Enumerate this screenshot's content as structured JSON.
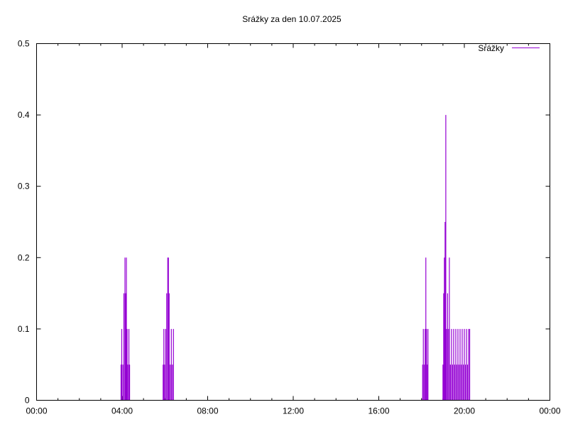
{
  "chart_data": {
    "type": "line",
    "title": "Srážky za den 10.07.2025",
    "xlabel": "",
    "ylabel": "",
    "x_ticks": [
      "00:00",
      "04:00",
      "08:00",
      "12:00",
      "16:00",
      "20:00",
      "00:00"
    ],
    "y_ticks": [
      "0",
      "0.1",
      "0.2",
      "0.3",
      "0.4",
      "0.5"
    ],
    "xlim_hours": [
      0,
      24
    ],
    "ylim": [
      0,
      0.5
    ],
    "grid": false,
    "legend_position": "top-right",
    "colors": {
      "series": "#9400d3",
      "axis": "#000000"
    },
    "series": [
      {
        "name": "Srážky",
        "points": [
          [
            "03:57",
            0.05
          ],
          [
            "03:59",
            0.1
          ],
          [
            "04:02",
            0.05
          ],
          [
            "04:05",
            0.15
          ],
          [
            "04:08",
            0.2
          ],
          [
            "04:10",
            0.15
          ],
          [
            "04:12",
            0.2
          ],
          [
            "04:14",
            0.1
          ],
          [
            "04:16",
            0.05
          ],
          [
            "04:19",
            0.1
          ],
          [
            "04:21",
            0.05
          ],
          [
            "05:55",
            0.05
          ],
          [
            "05:57",
            0.1
          ],
          [
            "05:59",
            0.05
          ],
          [
            "06:02",
            0.1
          ],
          [
            "06:05",
            0.15
          ],
          [
            "06:08",
            0.2
          ],
          [
            "06:10",
            0.2
          ],
          [
            "06:12",
            0.15
          ],
          [
            "06:15",
            0.05
          ],
          [
            "06:18",
            0.1
          ],
          [
            "06:21",
            0.05
          ],
          [
            "06:24",
            0.1
          ],
          [
            "18:03",
            0.05
          ],
          [
            "18:05",
            0.1
          ],
          [
            "18:08",
            0.05
          ],
          [
            "18:10",
            0.1
          ],
          [
            "18:12",
            0.2
          ],
          [
            "18:14",
            0.1
          ],
          [
            "18:16",
            0.05
          ],
          [
            "18:18",
            0.1
          ],
          [
            "19:00",
            0.05
          ],
          [
            "19:02",
            0.15
          ],
          [
            "19:04",
            0.2
          ],
          [
            "19:06",
            0.25
          ],
          [
            "19:08",
            0.4
          ],
          [
            "19:10",
            0.1
          ],
          [
            "19:13",
            0.15
          ],
          [
            "19:16",
            0.1
          ],
          [
            "19:18",
            0.2
          ],
          [
            "19:21",
            0.05
          ],
          [
            "19:24",
            0.1
          ],
          [
            "19:27",
            0.05
          ],
          [
            "19:30",
            0.1
          ],
          [
            "19:33",
            0.05
          ],
          [
            "19:36",
            0.1
          ],
          [
            "19:39",
            0.05
          ],
          [
            "19:42",
            0.1
          ],
          [
            "19:45",
            0.05
          ],
          [
            "19:48",
            0.1
          ],
          [
            "19:51",
            0.05
          ],
          [
            "19:54",
            0.1
          ],
          [
            "19:57",
            0.05
          ],
          [
            "20:00",
            0.1
          ],
          [
            "20:03",
            0.05
          ],
          [
            "20:06",
            0.1
          ],
          [
            "20:09",
            0.05
          ],
          [
            "20:12",
            0.1
          ],
          [
            "20:15",
            0.1
          ]
        ]
      }
    ]
  }
}
